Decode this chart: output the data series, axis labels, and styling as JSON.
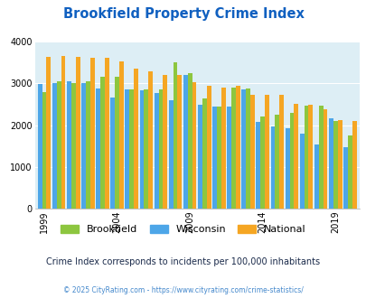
{
  "title": "Brookfield Property Crime Index",
  "title_color": "#1060c0",
  "subtitle": "Crime Index corresponds to incidents per 100,000 inhabitants",
  "footer": "© 2025 CityRating.com - https://www.cityrating.com/crime-statistics/",
  "footer_color": "#4488cc",
  "subtitle_color": "#1a2a4a",
  "years": [
    1999,
    2000,
    2001,
    2002,
    2003,
    2004,
    2005,
    2006,
    2007,
    2008,
    2009,
    2010,
    2011,
    2012,
    2013,
    2014,
    2015,
    2016,
    2017,
    2018,
    2019,
    2020
  ],
  "brookfield": [
    2800,
    3050,
    3000,
    3050,
    3150,
    3150,
    2850,
    2850,
    2850,
    3500,
    3250,
    2650,
    2450,
    2900,
    2870,
    2200,
    2250,
    2300,
    2460,
    2460,
    2100,
    1760
  ],
  "wisconsin": [
    2980,
    3000,
    3050,
    3000,
    2880,
    2670,
    2850,
    2840,
    2770,
    2600,
    3200,
    2480,
    2450,
    2440,
    2860,
    2080,
    1980,
    1930,
    1790,
    1540,
    2160,
    1470
  ],
  "national": [
    3640,
    3660,
    3640,
    3610,
    3610,
    3530,
    3360,
    3280,
    3210,
    3210,
    3030,
    2950,
    2910,
    2950,
    2720,
    2720,
    2720,
    2510,
    2490,
    2380,
    2120,
    2090
  ],
  "bar_color_brookfield": "#8dc63f",
  "bar_color_wisconsin": "#4da6e8",
  "bar_color_national": "#f5a623",
  "bg_color": "#ddeef5",
  "ylim": [
    0,
    4000
  ],
  "yticks": [
    0,
    1000,
    2000,
    3000,
    4000
  ],
  "xtick_years": [
    1999,
    2004,
    2009,
    2014,
    2019
  ],
  "legend_labels": [
    "Brookfield",
    "Wisconsin",
    "National"
  ]
}
